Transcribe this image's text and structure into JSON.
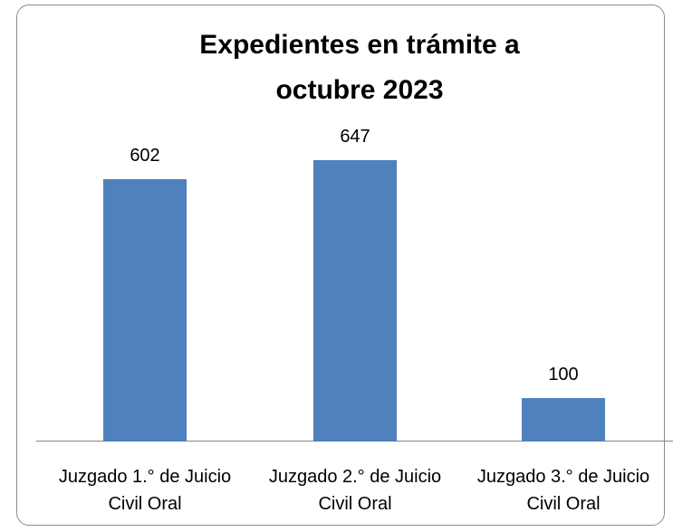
{
  "chart_data": {
    "type": "bar",
    "title": "Expedientes en trámite a octubre 2023",
    "categories": [
      "Juzgado 1.° de Juicio Civil Oral",
      "Juzgado 2.° de Juicio Civil Oral",
      "Juzgado 3.° de Juicio Civil Oral"
    ],
    "values": [
      602,
      647,
      100
    ],
    "color": "#4f81bd",
    "ylim": [
      0,
      700
    ]
  }
}
